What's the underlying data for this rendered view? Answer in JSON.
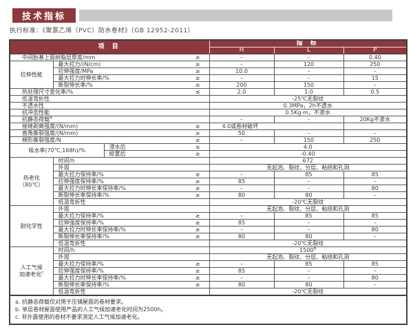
{
  "page": {
    "title": "技术指标",
    "standard_line": "执行标准：《聚氯乙烯（PVC）防水卷材》（GB 12952-2011）"
  },
  "colors": {
    "accent_red": "#8d383d",
    "title_bar_gray": "#c8c8c8",
    "border_dark": "#3f3f3f",
    "text": "#3a3a3a"
  },
  "table": {
    "header": {
      "item": "项 目",
      "indicator": "指 标",
      "grades": [
        "H",
        "L",
        "P"
      ]
    },
    "rows": [
      [
        {
          "t": "中间胎基上面树脂层厚度/mm",
          "sym": "≥",
          "cs": 3,
          "k": "item"
        },
        {
          "t": "–"
        },
        {
          "t": "–"
        },
        {
          "t": "0.40"
        }
      ],
      [
        {
          "t": "拉伸性能",
          "rs": 4,
          "k": "group"
        },
        {
          "t": "最大拉力/(N/cm)",
          "sym": "≥",
          "cs": 2,
          "k": "item"
        },
        {
          "t": "–"
        },
        {
          "t": "120"
        },
        {
          "t": "250"
        }
      ],
      [
        {
          "t": "拉伸强度/MPa",
          "sym": "≥",
          "cs": 2,
          "k": "item"
        },
        {
          "t": "10.0"
        },
        {
          "t": "–"
        },
        {
          "t": "–"
        }
      ],
      [
        {
          "t": "最大拉力时伸长率/%",
          "sym": "≥",
          "cs": 2,
          "k": "item"
        },
        {
          "t": "–"
        },
        {
          "t": "–"
        },
        {
          "t": "15"
        }
      ],
      [
        {
          "t": "断裂伸长率/%",
          "sym": "≥",
          "cs": 2,
          "k": "item"
        },
        {
          "t": "200"
        },
        {
          "t": "150"
        },
        {
          "t": "–"
        }
      ],
      [
        {
          "t": "热处理尺寸变化率/%",
          "sym": "≤",
          "cs": 3,
          "k": "item"
        },
        {
          "t": "2.0"
        },
        {
          "t": "1.0"
        },
        {
          "t": "0.5"
        }
      ],
      [
        {
          "t": "低温弯折性",
          "cs": 3,
          "k": "item"
        },
        {
          "t": "-25℃无裂纹",
          "cs": 3
        }
      ],
      [
        {
          "t": "不透水性",
          "cs": 3,
          "k": "item"
        },
        {
          "t": "0.3MPa，2h不透水",
          "cs": 3
        }
      ],
      [
        {
          "t": "抗冲击性能",
          "cs": 3,
          "k": "item"
        },
        {
          "t": "0.5Kg·m，不渗水",
          "cs": 3
        }
      ],
      [
        {
          "t": "抗静态荷载^a",
          "cs": 3,
          "k": "item"
        },
        {
          "t": "–"
        },
        {
          "t": "–"
        },
        {
          "t": "20Kg不渗水"
        }
      ],
      [
        {
          "t": "接缝剥离强度/(N/mm)",
          "sym": "≥",
          "cs": 3,
          "k": "item"
        },
        {
          "t": "4.0或卷材破坏",
          "cs": 2,
          "k": "val-left"
        },
        {
          "t": ""
        }
      ],
      [
        {
          "t": "直角撕裂强度/(N/mm)",
          "sym": "≥",
          "cs": 3,
          "k": "item"
        },
        {
          "t": "50"
        },
        {
          "t": "–"
        },
        {
          "t": "–"
        }
      ],
      [
        {
          "t": "梯形撕裂强度/N",
          "sym": "≥",
          "cs": 3,
          "k": "item"
        },
        {
          "t": "–"
        },
        {
          "t": "150"
        },
        {
          "t": "250"
        }
      ],
      [
        {
          "t": "吸水率(70℃,168h)/%",
          "cs": 2,
          "rs": 2,
          "k": "group"
        },
        {
          "t": "浸水后",
          "sym": "≤",
          "k": "item"
        },
        {
          "t": "4.0",
          "cs": 3
        }
      ],
      [
        {
          "t": "晾置后",
          "sym": "≥",
          "k": "item"
        },
        {
          "t": "-0.40",
          "cs": 3
        }
      ],
      [
        {
          "t": "热老化\n（80℃）",
          "rs": 7,
          "k": "group"
        },
        {
          "t": "时间/h",
          "cs": 2,
          "k": "item"
        },
        {
          "t": "672",
          "cs": 3
        }
      ],
      [
        {
          "t": "外观",
          "cs": 2,
          "k": "item"
        },
        {
          "t": "无起泡、裂纹、分层、粘结和孔洞",
          "cs": 3
        }
      ],
      [
        {
          "t": "最大拉力保持率/%",
          "sym": "≥",
          "cs": 2,
          "k": "item"
        },
        {
          "t": "–"
        },
        {
          "t": "85"
        },
        {
          "t": "85"
        }
      ],
      [
        {
          "t": "拉伸强度保持率/%",
          "sym": "≥",
          "cs": 2,
          "k": "item"
        },
        {
          "t": "85"
        },
        {
          "t": "–"
        },
        {
          "t": "–"
        }
      ],
      [
        {
          "t": "最大拉力时伸长率保持率/%",
          "sym": "≥",
          "cs": 2,
          "k": "item"
        },
        {
          "t": "–"
        },
        {
          "t": "–"
        },
        {
          "t": "80"
        }
      ],
      [
        {
          "t": "断裂伸长率保持率/%",
          "sym": "≥",
          "cs": 2,
          "k": "item"
        },
        {
          "t": "80"
        },
        {
          "t": "80"
        },
        {
          "t": "–"
        }
      ],
      [
        {
          "t": "低温弯折性",
          "cs": 2,
          "k": "item"
        },
        {
          "t": "-20℃无裂纹",
          "cs": 3
        }
      ],
      [
        {
          "t": "耐化学性",
          "rs": 6,
          "k": "group"
        },
        {
          "t": "外观",
          "cs": 2,
          "k": "item"
        },
        {
          "t": "无起泡、裂纹、分层、粘结和孔洞",
          "cs": 3
        }
      ],
      [
        {
          "t": "最大拉力保持率/%",
          "sym": "≥",
          "cs": 2,
          "k": "item"
        },
        {
          "t": "–"
        },
        {
          "t": "85"
        },
        {
          "t": "85"
        }
      ],
      [
        {
          "t": "拉伸强度保持率/%",
          "sym": "≥",
          "cs": 2,
          "k": "item"
        },
        {
          "t": "85"
        },
        {
          "t": "–"
        },
        {
          "t": "–"
        }
      ],
      [
        {
          "t": "最大拉力时伸长率保持率/%",
          "sym": "≥",
          "cs": 2,
          "k": "item"
        },
        {
          "t": "–"
        },
        {
          "t": "–"
        },
        {
          "t": "80"
        }
      ],
      [
        {
          "t": "断裂伸长率保持率/%",
          "sym": "≥",
          "cs": 2,
          "k": "item"
        },
        {
          "t": "80"
        },
        {
          "t": "80"
        },
        {
          "t": "–"
        }
      ],
      [
        {
          "t": "低温弯折性",
          "cs": 2,
          "k": "item"
        },
        {
          "t": "-20℃无裂纹",
          "cs": 3
        }
      ],
      [
        {
          "t": "人工气候\n加速老化^c",
          "rs": 7,
          "k": "group"
        },
        {
          "t": "时间/h",
          "cs": 2,
          "k": "item"
        },
        {
          "t": "1500^b",
          "cs": 3
        }
      ],
      [
        {
          "t": "外观",
          "cs": 2,
          "k": "item"
        },
        {
          "t": "无起泡、裂纹、分层、粘结和孔洞",
          "cs": 3
        }
      ],
      [
        {
          "t": "最大拉力保持率/%",
          "sym": "≥",
          "cs": 2,
          "k": "item"
        },
        {
          "t": "–"
        },
        {
          "t": "85"
        },
        {
          "t": "85"
        }
      ],
      [
        {
          "t": "拉伸强度保持率/%",
          "sym": "≥",
          "cs": 2,
          "k": "item"
        },
        {
          "t": "85"
        },
        {
          "t": "–"
        },
        {
          "t": "–"
        }
      ],
      [
        {
          "t": "最大拉力时伸长率保持率/%",
          "sym": "≥",
          "cs": 2,
          "k": "item"
        },
        {
          "t": "–"
        },
        {
          "t": "–"
        },
        {
          "t": "80"
        }
      ],
      [
        {
          "t": "断裂伸长率保持率/%",
          "sym": "≥",
          "cs": 2,
          "k": "item"
        },
        {
          "t": "80"
        },
        {
          "t": "80"
        },
        {
          "t": "–"
        }
      ],
      [
        {
          "t": "低温弯折性",
          "cs": 2,
          "k": "item"
        },
        {
          "t": "-20℃无裂纹",
          "cs": 3
        }
      ]
    ],
    "footnotes": [
      "a. 抗静态荷载仅对用于压铺屋面的卷材要求。",
      "b. 单层卷材屋面使用产品的人工气候加速老化时间为2500h。",
      "c. 非外露使用的卷材不要求测定人工气候加速老化。"
    ]
  }
}
